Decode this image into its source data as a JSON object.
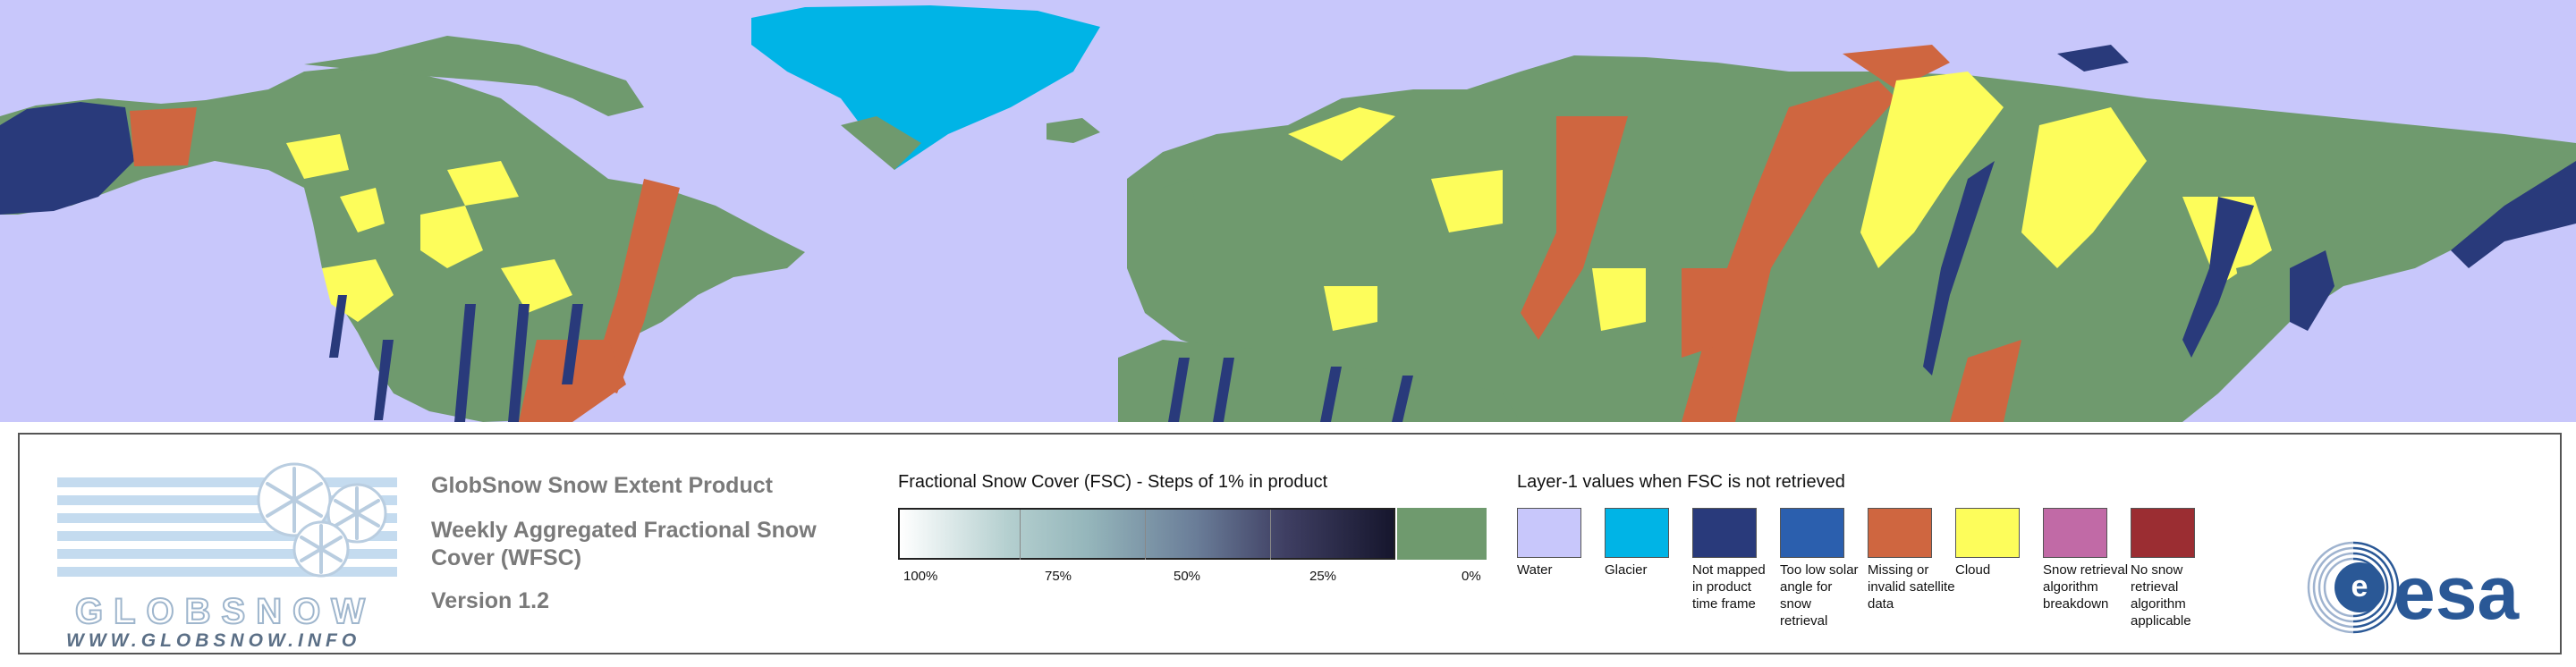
{
  "map": {
    "colors": {
      "water": "#c8c7fb",
      "land_no_snow": "#6f9a6e",
      "glacier": "#00b4e6",
      "not_mapped": "#293a7b",
      "missing": "#cf6640",
      "cloud": "#fdfd5b"
    }
  },
  "legend": {
    "logo": {
      "wordmark": "GLOBSNOW",
      "url": "WWW.GLOBSNOW.INFO"
    },
    "product_title": "GlobSnow Snow Extent Product",
    "product_subtitle": "Weekly Aggregated Fractional Snow Cover (WFSC)",
    "product_version": "Version 1.2",
    "fsc_scale": {
      "title": "Fractional Snow Cover (FSC) - Steps of 1% in product",
      "labels": [
        "100%",
        "75%",
        "50%",
        "25%",
        "0%"
      ],
      "zero_color": "#6f9a6e"
    },
    "layer1": {
      "title": "Layer-1 values when FSC is not retrieved",
      "items": [
        {
          "label": "Water",
          "color": "#c8c7fb"
        },
        {
          "label": "Glacier",
          "color": "#00b4e6"
        },
        {
          "label": "Not mapped in product time frame",
          "color": "#293a7b"
        },
        {
          "label": "Too low solar angle for snow retrieval",
          "color": "#2b5fae"
        },
        {
          "label": "Missing or invalid satellite data",
          "color": "#cf6640"
        },
        {
          "label": "Cloud",
          "color": "#fdfd5b"
        },
        {
          "label": "Snow retrieval algorithm breakdown",
          "color": "#c16aa6"
        },
        {
          "label": "No snow retrieval algorithm applicable",
          "color": "#9b2d32"
        }
      ]
    },
    "esa_logo": {
      "wordmark": "esa",
      "color": "#2a5896"
    }
  }
}
